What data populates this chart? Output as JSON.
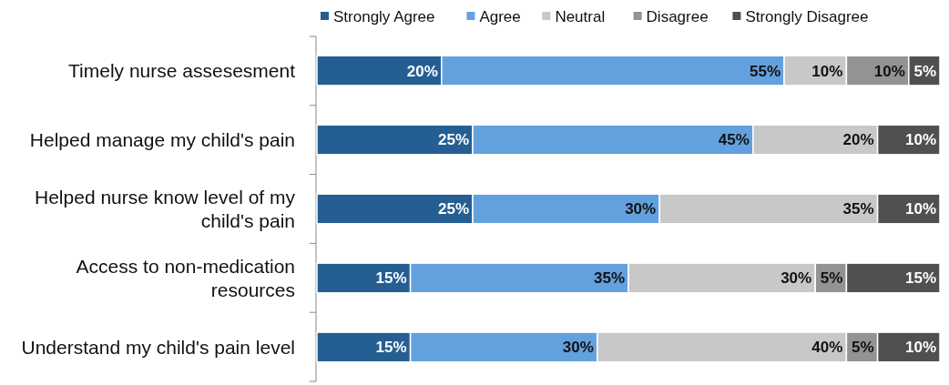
{
  "chart_data": {
    "type": "bar",
    "orientation": "horizontal",
    "stacked": true,
    "legend": "top",
    "categories": [
      "Timely nurse assesesment",
      "Helped manage my child's pain",
      "Helped nurse know level of my child's pain",
      "Access to non-medication resources",
      "Understand my child's pain level"
    ],
    "series": [
      {
        "name": "Strongly Agree",
        "color": "#255e92",
        "values": [
          20,
          25,
          25,
          15,
          15
        ],
        "value_labels": [
          "20%",
          "25%",
          "25%",
          "15%",
          "15%"
        ]
      },
      {
        "name": "Agree",
        "color": "#63a1de",
        "values": [
          55,
          45,
          30,
          35,
          30
        ],
        "value_labels": [
          "55%",
          "45%",
          "30%",
          "35%",
          "30%"
        ]
      },
      {
        "name": "Neutral",
        "color": "#c8c8c8",
        "values": [
          10,
          20,
          35,
          30,
          40
        ],
        "value_labels": [
          "10%",
          "20%",
          "35%",
          "30%",
          "40%"
        ]
      },
      {
        "name": "Disagree",
        "color": "#939393",
        "values": [
          10,
          null,
          null,
          5,
          5
        ],
        "value_labels": [
          "10%",
          null,
          null,
          "5%",
          "5%"
        ]
      },
      {
        "name": "Strongly Disagree",
        "color": "#505050",
        "values": [
          5,
          10,
          10,
          15,
          10
        ],
        "value_labels": [
          "5%",
          "10%",
          "10%",
          "15%",
          "10%"
        ]
      }
    ]
  }
}
